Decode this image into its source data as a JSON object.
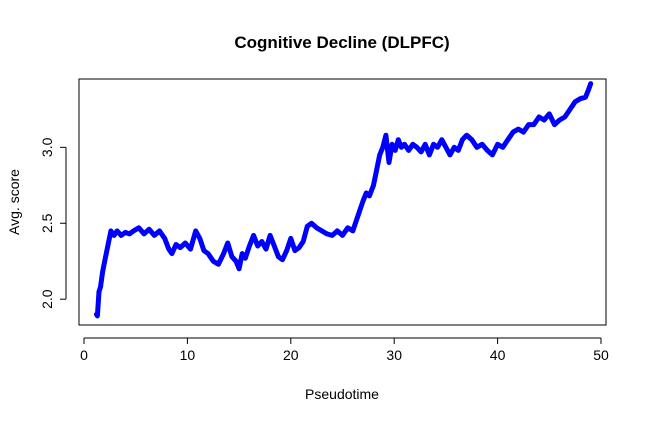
{
  "chart_data": {
    "type": "line",
    "title": "Cognitive Decline (DLPFC)",
    "xlabel": "Pseudotime",
    "ylabel": "Avg. score",
    "xlim": [
      0,
      50
    ],
    "ylim": [
      1.83,
      3.45
    ],
    "x_ticks": [
      0,
      10,
      20,
      30,
      40,
      50
    ],
    "x_tick_labels": [
      "0",
      "10",
      "20",
      "30",
      "40",
      "50"
    ],
    "y_ticks": [
      2.0,
      2.5,
      3.0
    ],
    "y_tick_labels": [
      "2.0",
      "2.5",
      "3.0"
    ],
    "grid": false,
    "legend": "none",
    "series": [
      {
        "color": "#0000ff",
        "x": [
          1.2,
          1.3,
          1.45,
          1.6,
          1.8,
          2.0,
          2.3,
          2.6,
          2.9,
          3.2,
          3.6,
          4.0,
          4.4,
          4.8,
          5.3,
          5.8,
          6.3,
          6.8,
          7.3,
          7.8,
          8.2,
          8.5,
          8.9,
          9.3,
          9.8,
          10.3,
          10.8,
          11.2,
          11.6,
          12.0,
          12.5,
          13.0,
          13.5,
          13.9,
          14.3,
          14.7,
          15.0,
          15.3,
          15.6,
          16.0,
          16.4,
          16.8,
          17.2,
          17.6,
          18.0,
          18.4,
          18.8,
          19.2,
          19.6,
          20.0,
          20.4,
          20.8,
          21.2,
          21.6,
          22.0,
          22.5,
          23.0,
          23.5,
          24.0,
          24.5,
          25.0,
          25.5,
          26.0,
          26.5,
          27.0,
          27.3,
          27.6,
          28.0,
          28.3,
          28.6,
          28.9,
          29.2,
          29.5,
          29.8,
          30.1,
          30.4,
          30.7,
          31.0,
          31.4,
          31.8,
          32.2,
          32.6,
          33.0,
          33.4,
          33.8,
          34.2,
          34.6,
          35.0,
          35.4,
          35.8,
          36.2,
          36.6,
          37.0,
          37.5,
          38.0,
          38.5,
          39.0,
          39.5,
          40.0,
          40.5,
          41.0,
          41.5,
          42.0,
          42.5,
          43.0,
          43.5,
          44.0,
          44.5,
          45.0,
          45.5,
          46.0,
          46.5,
          47.0,
          47.5,
          48.0,
          48.5,
          48.8,
          49.0
        ],
        "y": [
          1.9,
          1.89,
          2.05,
          2.08,
          2.18,
          2.25,
          2.35,
          2.45,
          2.42,
          2.45,
          2.42,
          2.44,
          2.43,
          2.45,
          2.47,
          2.43,
          2.46,
          2.42,
          2.45,
          2.4,
          2.33,
          2.3,
          2.36,
          2.34,
          2.37,
          2.33,
          2.45,
          2.4,
          2.32,
          2.3,
          2.25,
          2.23,
          2.3,
          2.37,
          2.28,
          2.25,
          2.2,
          2.3,
          2.27,
          2.35,
          2.42,
          2.35,
          2.38,
          2.33,
          2.42,
          2.35,
          2.28,
          2.26,
          2.32,
          2.4,
          2.32,
          2.34,
          2.38,
          2.48,
          2.5,
          2.47,
          2.45,
          2.43,
          2.42,
          2.45,
          2.42,
          2.47,
          2.45,
          2.55,
          2.65,
          2.7,
          2.68,
          2.75,
          2.85,
          2.95,
          3.0,
          3.08,
          2.9,
          3.02,
          2.98,
          3.05,
          3.0,
          3.02,
          2.98,
          3.02,
          3.0,
          2.97,
          3.02,
          2.95,
          3.02,
          3.0,
          3.05,
          3.0,
          2.95,
          3.0,
          2.98,
          3.05,
          3.08,
          3.05,
          3.0,
          3.02,
          2.98,
          2.95,
          3.02,
          3.0,
          3.05,
          3.1,
          3.12,
          3.1,
          3.15,
          3.15,
          3.2,
          3.18,
          3.22,
          3.15,
          3.18,
          3.2,
          3.25,
          3.3,
          3.32,
          3.33,
          3.38,
          3.42
        ]
      }
    ]
  }
}
